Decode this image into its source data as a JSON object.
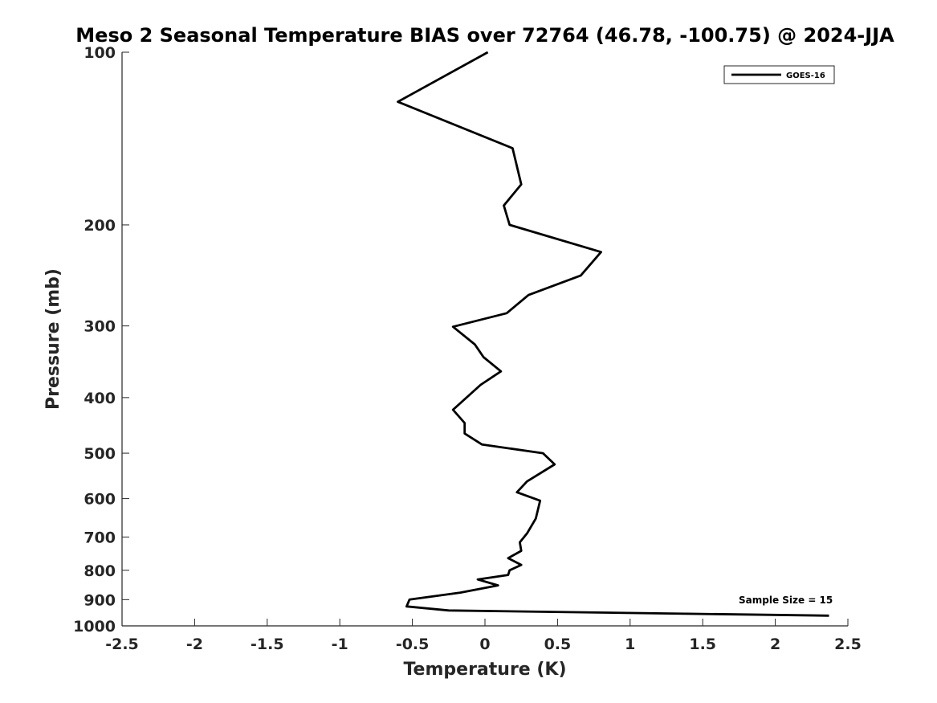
{
  "chart_data": {
    "type": "line",
    "title": "Meso 2 Seasonal Temperature BIAS over 72764 (46.78, -100.75) @ 2024-JJA",
    "xlabel": "Temperature (K)",
    "ylabel": "Pressure (mb)",
    "xlim": [
      -2.5,
      2.5
    ],
    "ylim": [
      100,
      1000
    ],
    "y_scale": "log",
    "y_reversed": true,
    "x_ticks": [
      -2.5,
      -2,
      -1.5,
      -1,
      -0.5,
      0,
      0.5,
      1,
      1.5,
      2,
      2.5
    ],
    "x_tick_labels": [
      "-2.5",
      "-2",
      "-1.5",
      "-1",
      "-0.5",
      "0",
      "0.5",
      "1",
      "1.5",
      "2",
      "2.5"
    ],
    "y_ticks": [
      100,
      200,
      300,
      400,
      500,
      600,
      700,
      800,
      900,
      1000
    ],
    "y_tick_labels": [
      "100",
      "200",
      "300",
      "400",
      "500",
      "600",
      "700",
      "800",
      "900",
      "1000"
    ],
    "grid": false,
    "legend_position": "top-right",
    "line_color": "#000000",
    "series": [
      {
        "name": "GOES-16",
        "points": [
          {
            "x": 0.02,
            "p": 100
          },
          {
            "x": -0.6,
            "p": 122
          },
          {
            "x": 0.19,
            "p": 147
          },
          {
            "x": 0.25,
            "p": 170
          },
          {
            "x": 0.13,
            "p": 185
          },
          {
            "x": 0.17,
            "p": 200
          },
          {
            "x": 0.8,
            "p": 223
          },
          {
            "x": 0.66,
            "p": 245
          },
          {
            "x": 0.3,
            "p": 265
          },
          {
            "x": 0.15,
            "p": 285
          },
          {
            "x": -0.22,
            "p": 301
          },
          {
            "x": -0.07,
            "p": 323
          },
          {
            "x": -0.01,
            "p": 340
          },
          {
            "x": 0.11,
            "p": 360
          },
          {
            "x": -0.03,
            "p": 380
          },
          {
            "x": -0.22,
            "p": 420
          },
          {
            "x": -0.14,
            "p": 443
          },
          {
            "x": -0.14,
            "p": 462
          },
          {
            "x": -0.02,
            "p": 483
          },
          {
            "x": 0.4,
            "p": 500
          },
          {
            "x": 0.48,
            "p": 523
          },
          {
            "x": 0.29,
            "p": 560
          },
          {
            "x": 0.22,
            "p": 585
          },
          {
            "x": 0.38,
            "p": 605
          },
          {
            "x": 0.35,
            "p": 650
          },
          {
            "x": 0.29,
            "p": 690
          },
          {
            "x": 0.24,
            "p": 715
          },
          {
            "x": 0.25,
            "p": 740
          },
          {
            "x": 0.16,
            "p": 762
          },
          {
            "x": 0.25,
            "p": 783
          },
          {
            "x": 0.17,
            "p": 800
          },
          {
            "x": 0.16,
            "p": 815
          },
          {
            "x": -0.05,
            "p": 830
          },
          {
            "x": 0.09,
            "p": 850
          },
          {
            "x": -0.17,
            "p": 875
          },
          {
            "x": -0.52,
            "p": 900
          },
          {
            "x": -0.54,
            "p": 925
          },
          {
            "x": -0.25,
            "p": 940
          },
          {
            "x": 2.37,
            "p": 960
          }
        ]
      }
    ],
    "annotation": "Sample Size = 15"
  }
}
